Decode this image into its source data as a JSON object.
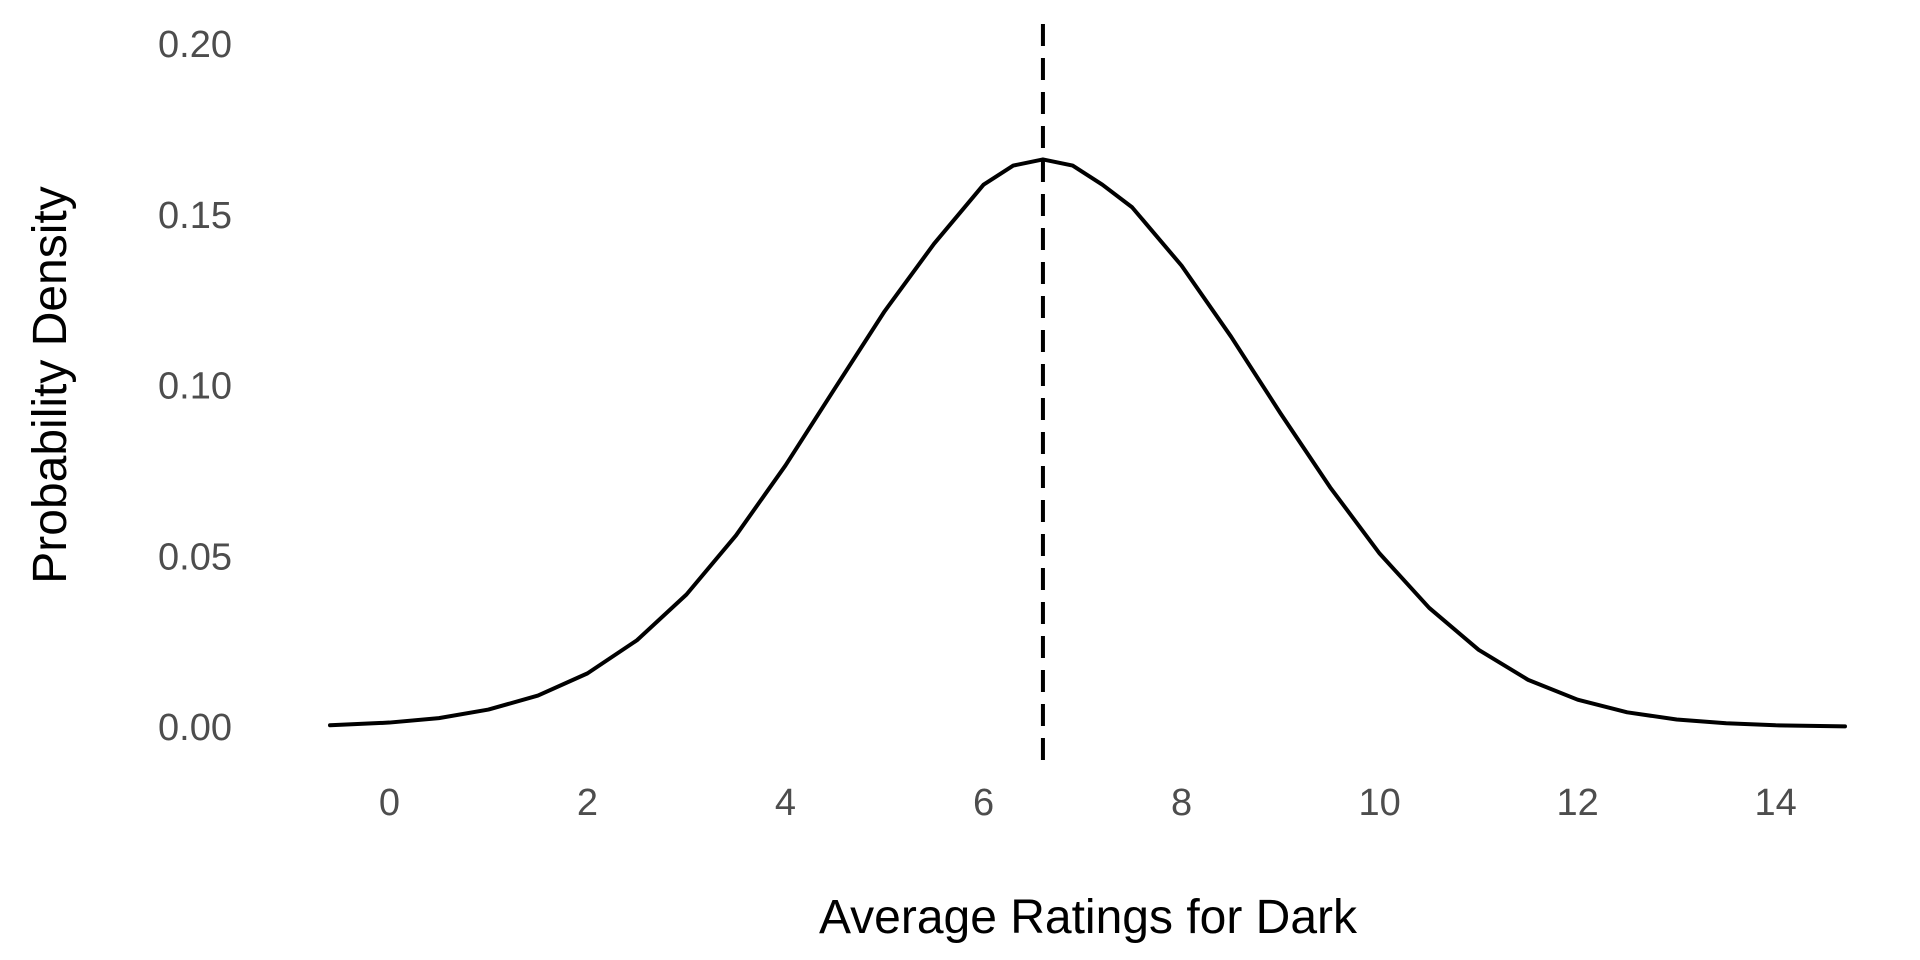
{
  "chart_data": {
    "type": "line",
    "title": "",
    "xlabel": "Average Ratings for Dark",
    "ylabel": "Probability Density",
    "xlim": [
      -0.6,
      14.7
    ],
    "ylim": [
      0.0,
      0.2
    ],
    "x_ticks": [
      0,
      2,
      4,
      6,
      8,
      10,
      12,
      14
    ],
    "x_tick_labels": [
      "0",
      "2",
      "4",
      "6",
      "8",
      "10",
      "12",
      "14"
    ],
    "y_ticks": [
      0.0,
      0.05,
      0.1,
      0.15,
      0.2
    ],
    "y_tick_labels": [
      "0.00",
      "0.05",
      "0.10",
      "0.15",
      "0.20"
    ],
    "grid": false,
    "legend": "none",
    "series": [
      {
        "x": [
          -0.6,
          0.0,
          0.5,
          1.0,
          1.5,
          2.0,
          2.5,
          3.0,
          3.5,
          4.0,
          4.5,
          5.0,
          5.5,
          6.0,
          6.3,
          6.6,
          6.9,
          7.2,
          7.5,
          8.0,
          8.5,
          9.0,
          9.5,
          10.0,
          10.5,
          11.0,
          11.5,
          12.0,
          12.5,
          13.0,
          13.5,
          14.0,
          14.7
        ],
        "y": [
          0.0005,
          0.0013,
          0.0026,
          0.0051,
          0.0092,
          0.0157,
          0.0254,
          0.0388,
          0.0561,
          0.0766,
          0.0992,
          0.1217,
          0.1415,
          0.1588,
          0.1644,
          0.1662,
          0.1644,
          0.1588,
          0.1522,
          0.1351,
          0.1143,
          0.0918,
          0.0702,
          0.0508,
          0.0349,
          0.0226,
          0.0138,
          0.008,
          0.0043,
          0.0022,
          0.0011,
          0.0005,
          0.0002
        ],
        "color": "#000000"
      }
    ],
    "reference_line": {
      "x": 6.6,
      "style": "dashed",
      "color": "#000000"
    }
  }
}
